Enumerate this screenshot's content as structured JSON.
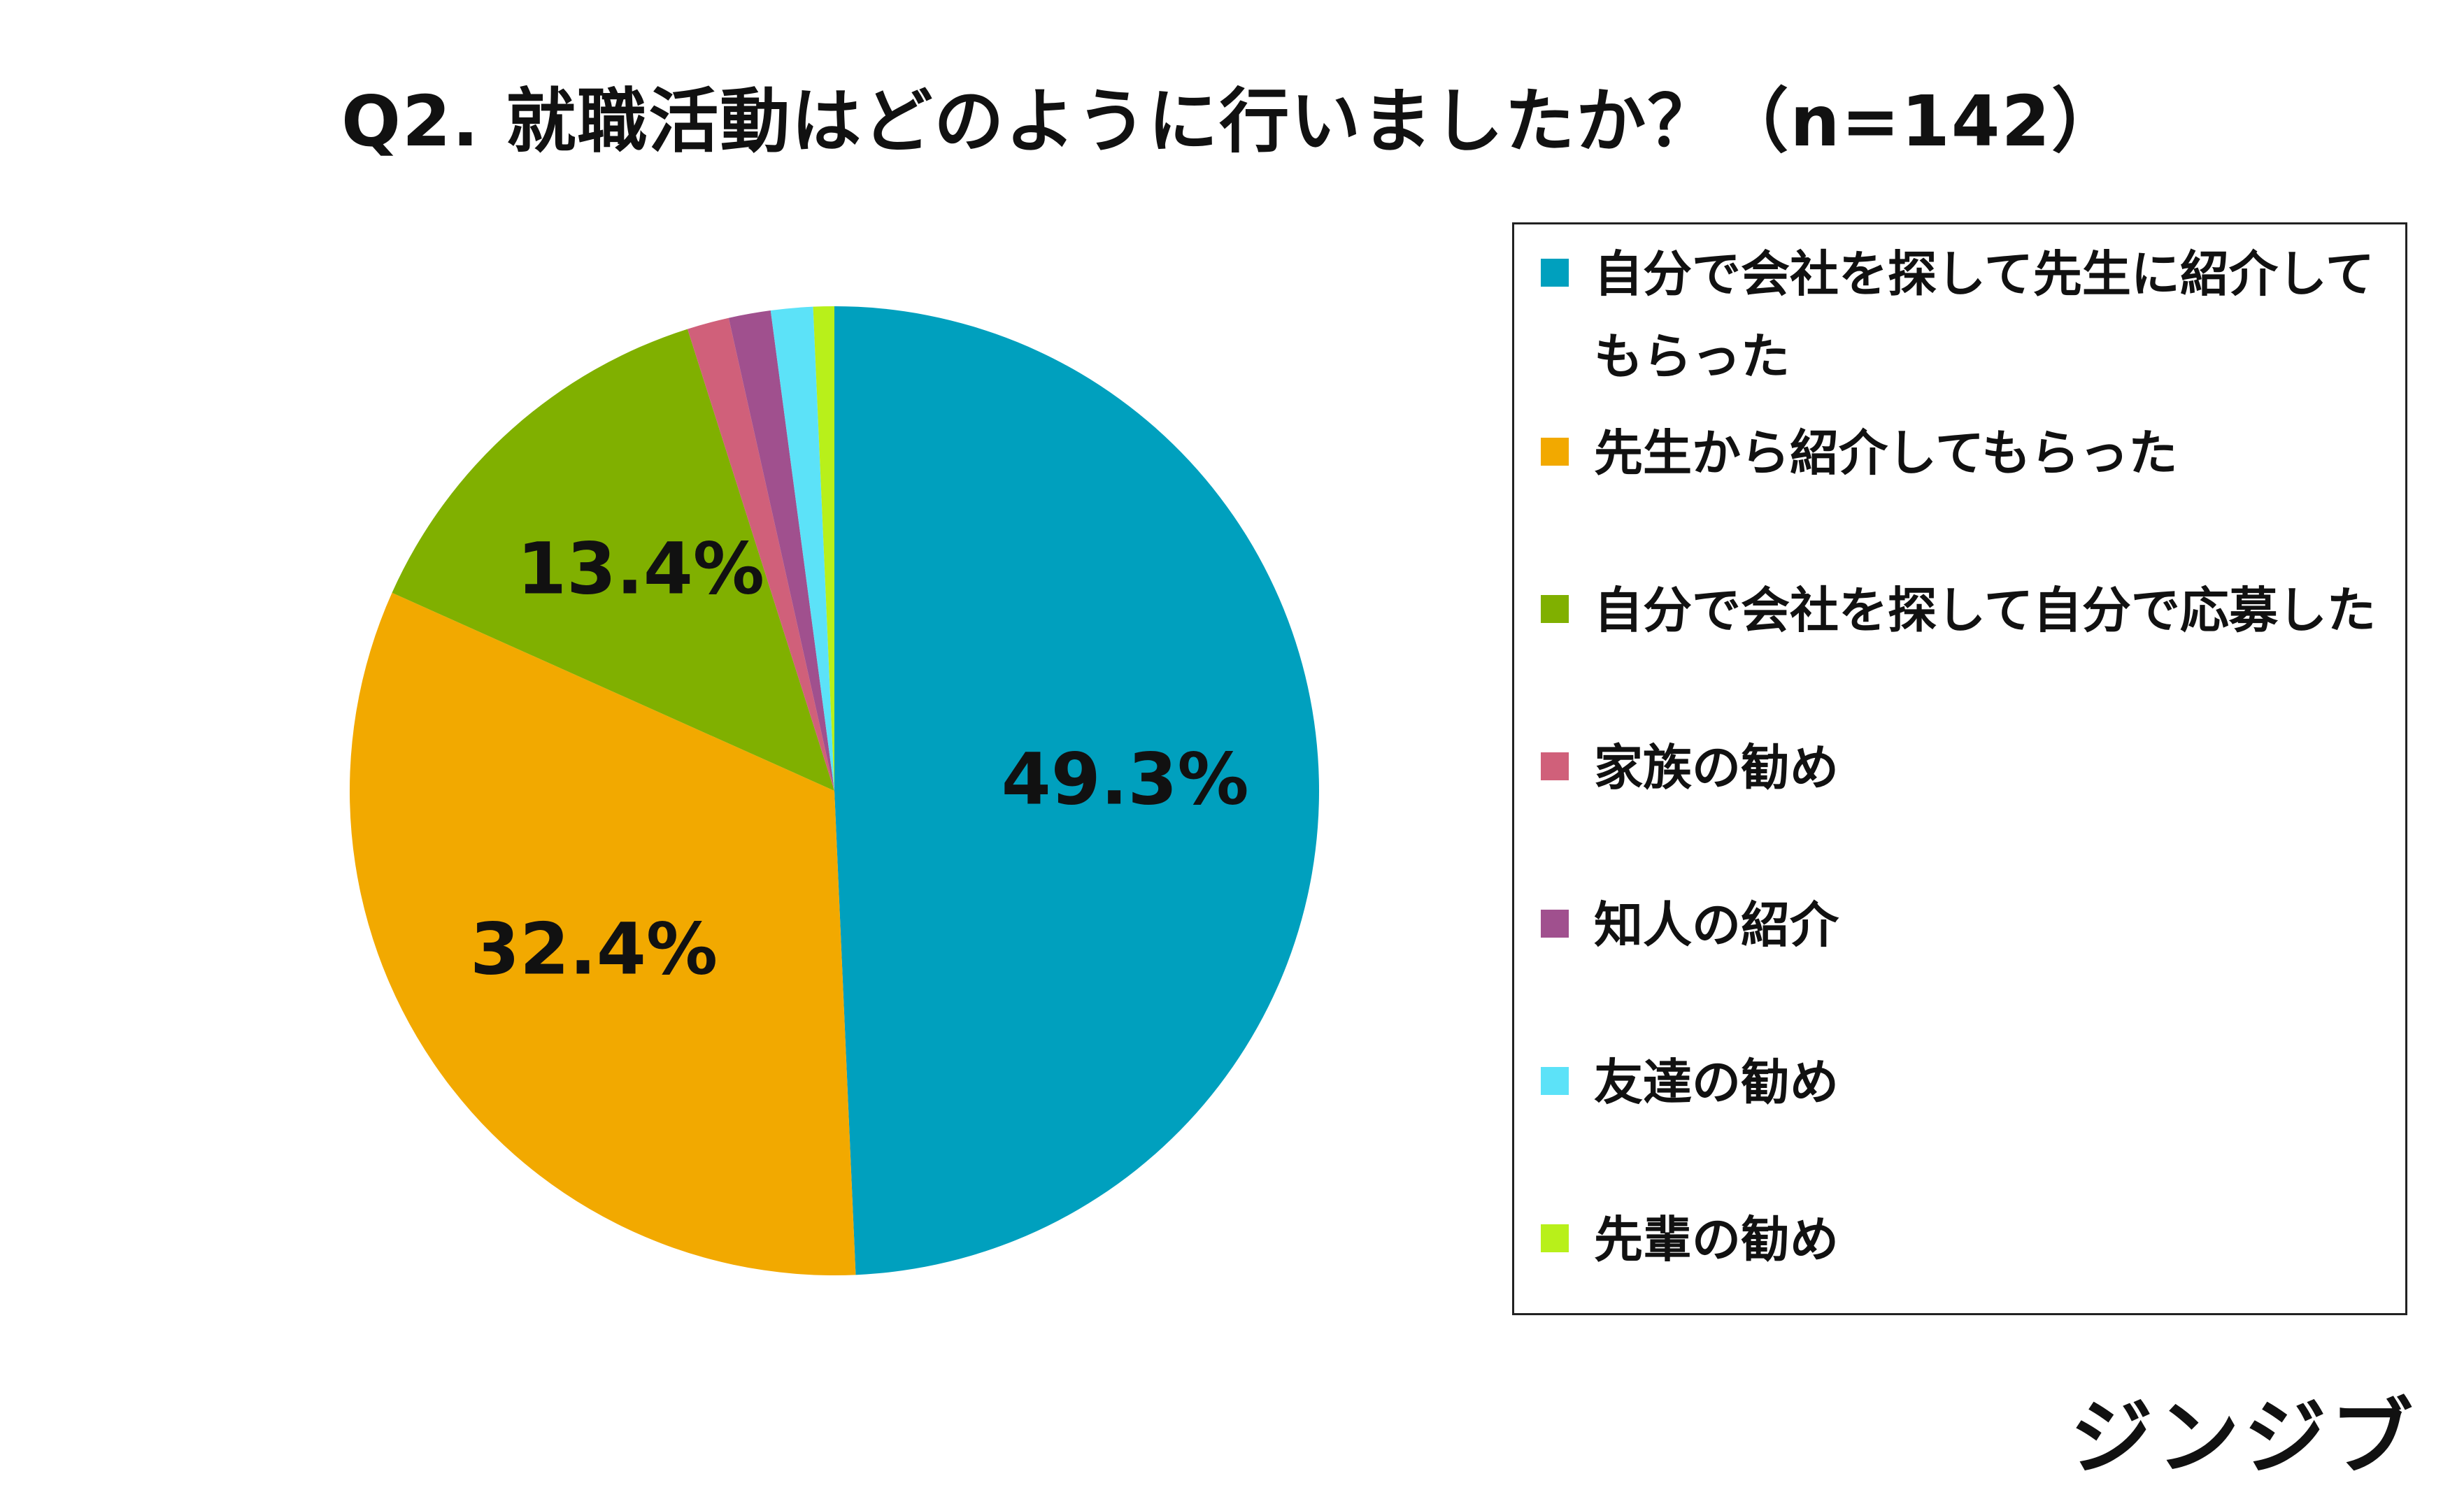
{
  "title": "Q2. 就職活動はどのように行いましたか？（n=142）",
  "brand": "ジンジブ",
  "chart_data": {
    "type": "pie",
    "title": "Q2. 就職活動はどのように行いましたか？（n=142）",
    "unit": "%",
    "legend_position": "right",
    "slices": [
      {
        "label": "自分で会社を探して先生に紹介してもらった",
        "value": 49.3,
        "data_label": "49.3%",
        "color": "#00A0BE"
      },
      {
        "label": "先生から紹介してもらった",
        "value": 32.4,
        "data_label": "32.4%",
        "color": "#F2A900"
      },
      {
        "label": "自分で会社を探して自分で応募した",
        "value": 13.4,
        "data_label": "13.4%",
        "color": "#80B000"
      },
      {
        "label": "家族の勧め",
        "value": 1.4,
        "data_label": "",
        "color": "#D0607A"
      },
      {
        "label": "知人の紹介",
        "value": 1.4,
        "data_label": "",
        "color": "#A0508E"
      },
      {
        "label": "友達の勧め",
        "value": 1.4,
        "data_label": "",
        "color": "#5CE2F8"
      },
      {
        "label": "先輩の勧め",
        "value": 0.7,
        "data_label": "",
        "color": "#B8F01A"
      }
    ]
  }
}
